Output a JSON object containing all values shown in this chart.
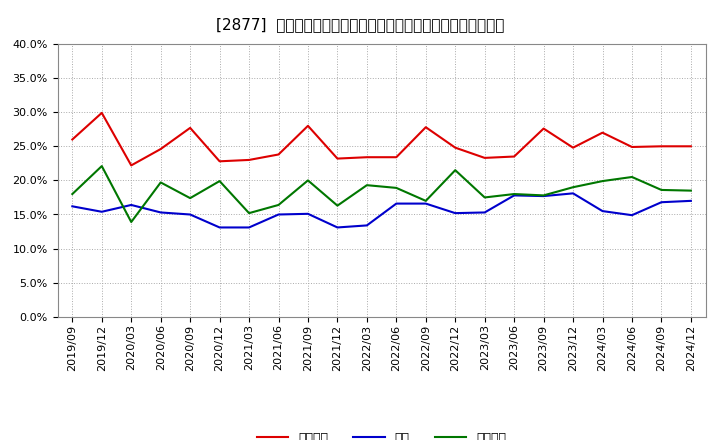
{
  "title": "[2877]  売上債権、在庫、買入債務の総資産に対する比率の推移",
  "ylim": [
    0.0,
    0.4
  ],
  "yticks": [
    0.0,
    0.05,
    0.1,
    0.15,
    0.2,
    0.25,
    0.3,
    0.35,
    0.4
  ],
  "dates": [
    "2019/09",
    "2019/12",
    "2020/03",
    "2020/06",
    "2020/09",
    "2020/12",
    "2021/03",
    "2021/06",
    "2021/09",
    "2021/12",
    "2022/03",
    "2022/06",
    "2022/09",
    "2022/12",
    "2023/03",
    "2023/06",
    "2023/09",
    "2023/12",
    "2024/03",
    "2024/06",
    "2024/09",
    "2024/12"
  ],
  "receivables": [
    0.26,
    0.299,
    0.222,
    0.246,
    0.277,
    0.228,
    0.23,
    0.238,
    0.28,
    0.232,
    0.234,
    0.234,
    0.278,
    0.248,
    0.233,
    0.235,
    0.276,
    0.248,
    0.27,
    0.249,
    0.25,
    0.25
  ],
  "inventory": [
    0.162,
    0.154,
    0.164,
    0.153,
    0.15,
    0.131,
    0.131,
    0.15,
    0.151,
    0.131,
    0.134,
    0.166,
    0.166,
    0.152,
    0.153,
    0.178,
    0.177,
    0.181,
    0.155,
    0.149,
    0.168,
    0.17
  ],
  "payables": [
    0.18,
    0.221,
    0.139,
    0.197,
    0.174,
    0.199,
    0.152,
    0.164,
    0.2,
    0.163,
    0.193,
    0.189,
    0.17,
    0.215,
    0.175,
    0.18,
    0.178,
    0.19,
    0.199,
    0.205,
    0.186,
    0.185
  ],
  "receivables_color": "#dd0000",
  "inventory_color": "#0000cc",
  "payables_color": "#007700",
  "legend_labels": [
    "売上債権",
    "在庫",
    "買入債務"
  ],
  "background_color": "#ffffff",
  "grid_color": "#aaaaaa",
  "title_fontsize": 11,
  "tick_fontsize": 8,
  "legend_fontsize": 9
}
